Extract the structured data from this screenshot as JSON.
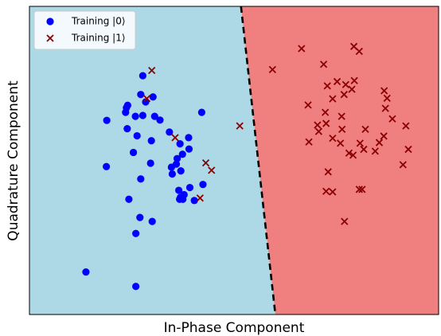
{
  "chart_data": {
    "type": "scatter",
    "title": "",
    "xlabel": "In-Phase Component",
    "ylabel": "Quadrature Component",
    "xlim": [
      0,
      100
    ],
    "ylim": [
      0,
      100
    ],
    "grid": false,
    "legend": {
      "placement": "top-left"
    },
    "decision_boundary": {
      "style": "dashed",
      "color": "#000000",
      "points": [
        [
          51.7,
          100
        ],
        [
          60.1,
          0
        ]
      ],
      "regions": [
        {
          "side": "left",
          "color": "#add8e6"
        },
        {
          "side": "right",
          "color": "#f08080"
        }
      ]
    },
    "series": [
      {
        "name": "Training |0⟩",
        "marker": "circle",
        "color": "#0000ff",
        "points": [
          [
            27.7,
            77.5
          ],
          [
            23.5,
            65.6
          ],
          [
            18.9,
            63.0
          ],
          [
            23.7,
            67.1
          ],
          [
            24.0,
            67.9
          ],
          [
            27.2,
            71.4
          ],
          [
            28.4,
            69.0
          ],
          [
            25.9,
            64.3
          ],
          [
            30.2,
            70.6
          ],
          [
            30.6,
            64.3
          ],
          [
            27.7,
            64.6
          ],
          [
            31.9,
            63.1
          ],
          [
            23.9,
            60.3
          ],
          [
            26.3,
            58.0
          ],
          [
            29.8,
            56.4
          ],
          [
            25.4,
            52.6
          ],
          [
            29.6,
            49.1
          ],
          [
            34.2,
            59.2
          ],
          [
            36.8,
            55.4
          ],
          [
            39.0,
            53.7
          ],
          [
            38.9,
            57.4
          ],
          [
            42.1,
            65.6
          ],
          [
            37.4,
            52.0
          ],
          [
            36.1,
            50.6
          ],
          [
            35.9,
            48.8
          ],
          [
            34.7,
            47.8
          ],
          [
            37.0,
            46.6
          ],
          [
            34.9,
            45.6
          ],
          [
            18.8,
            48.0
          ],
          [
            27.2,
            44.0
          ],
          [
            39.2,
            41.2
          ],
          [
            42.4,
            42.2
          ],
          [
            36.5,
            40.3
          ],
          [
            37.8,
            38.9
          ],
          [
            36.7,
            37.4
          ],
          [
            37.5,
            37.4
          ],
          [
            36.9,
            38.0
          ],
          [
            40.3,
            37.0
          ],
          [
            24.3,
            37.4
          ],
          [
            27.0,
            31.5
          ],
          [
            30.0,
            30.2
          ],
          [
            26.0,
            26.3
          ],
          [
            13.8,
            13.8
          ],
          [
            26.0,
            9.1
          ]
        ]
      },
      {
        "name": "Training |1⟩",
        "marker": "x",
        "color": "#8b0000",
        "points": [
          [
            29.9,
            79.2
          ],
          [
            28.7,
            70.1
          ],
          [
            35.6,
            57.4
          ],
          [
            43.1,
            49.2
          ],
          [
            44.5,
            46.8
          ],
          [
            41.7,
            37.8
          ],
          [
            51.4,
            61.2
          ],
          [
            59.4,
            79.5
          ],
          [
            66.5,
            86.3
          ],
          [
            71.9,
            81.2
          ],
          [
            79.3,
            87.0
          ],
          [
            80.6,
            85.4
          ],
          [
            72.8,
            74.2
          ],
          [
            76.9,
            71.4
          ],
          [
            74.1,
            70.0
          ],
          [
            75.2,
            75.6
          ],
          [
            77.3,
            74.6
          ],
          [
            78.8,
            73.1
          ],
          [
            79.4,
            75.9
          ],
          [
            68.1,
            68.0
          ],
          [
            72.3,
            65.6
          ],
          [
            76.3,
            64.3
          ],
          [
            70.4,
            61.5
          ],
          [
            72.5,
            62.0
          ],
          [
            70.7,
            59.4
          ],
          [
            76.4,
            60.1
          ],
          [
            68.3,
            56.0
          ],
          [
            74.1,
            57.2
          ],
          [
            76.0,
            55.6
          ],
          [
            78.1,
            52.4
          ],
          [
            79.1,
            51.7
          ],
          [
            80.8,
            55.6
          ],
          [
            82.1,
            60.1
          ],
          [
            81.7,
            53.6
          ],
          [
            84.5,
            53.0
          ],
          [
            85.5,
            55.8
          ],
          [
            86.6,
            57.9
          ],
          [
            86.7,
            72.6
          ],
          [
            87.4,
            70.2
          ],
          [
            87.0,
            66.9
          ],
          [
            88.7,
            63.5
          ],
          [
            92.0,
            61.2
          ],
          [
            92.6,
            53.6
          ],
          [
            91.3,
            48.6
          ],
          [
            80.6,
            40.6
          ],
          [
            81.3,
            40.6
          ],
          [
            73.0,
            46.3
          ],
          [
            72.5,
            40.0
          ],
          [
            74.1,
            39.8
          ],
          [
            77.0,
            30.2
          ]
        ]
      }
    ]
  }
}
